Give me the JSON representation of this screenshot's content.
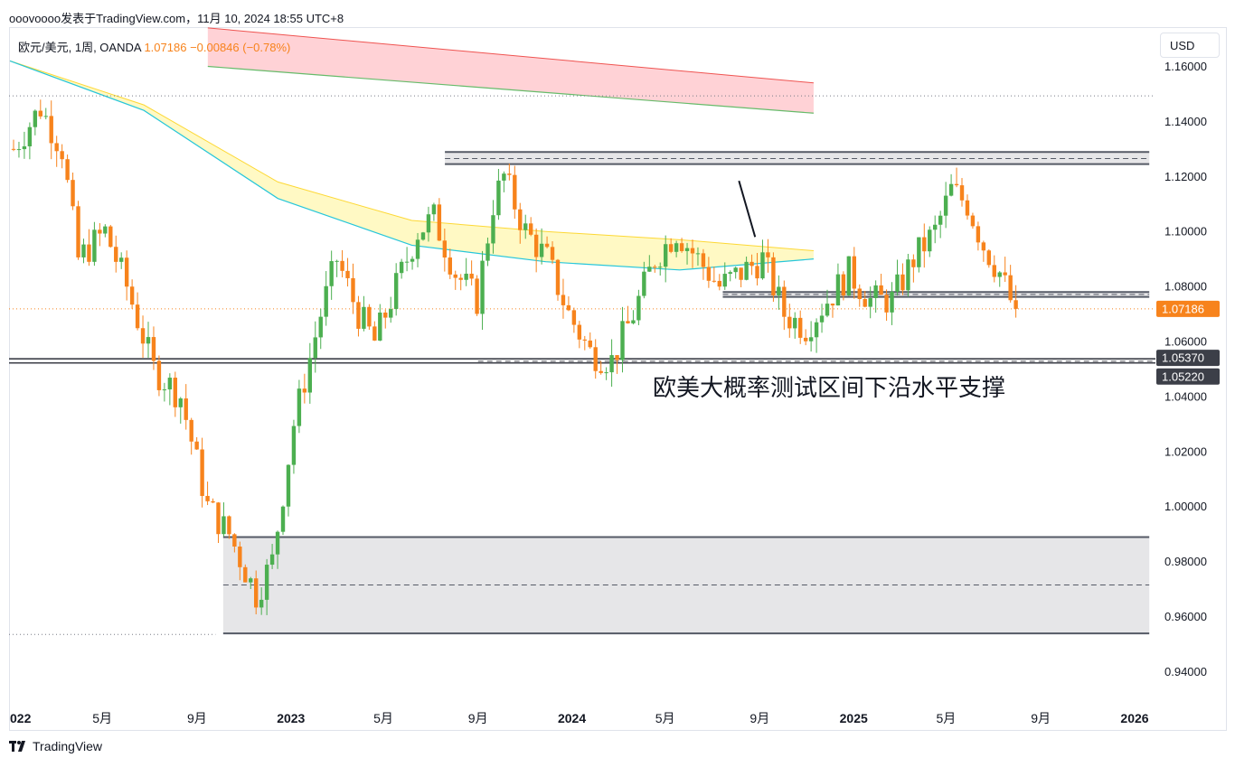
{
  "header": {
    "text": "ooovoooo发表于TradingView.com，11月 10, 2024 18:55 UTC+8"
  },
  "legend": {
    "symbol": "欧元/美元, 1周, OANDA",
    "price": "1.07186",
    "change": "−0.00846 (−0.78%)"
  },
  "currency_button": "USD",
  "footer": {
    "brand": "TradingView"
  },
  "annotation": "欧美大概率测试区间下沿水平支撑",
  "colors": {
    "up": "#4caf50",
    "down": "#f7831c",
    "band_red": "#ffcdd2",
    "band_yellow": "#fff59d",
    "ema_teal": "#26c6da",
    "ema_green": "#66bb6a",
    "zone_fill": "#e6e6e8",
    "zone_line": "#555a66",
    "price_tag": "#f7831c",
    "level_tag": "#3c3f48"
  },
  "chart_data": {
    "type": "candlestick",
    "title": "欧元/美元, 1周, OANDA",
    "ylim": [
      0.93,
      1.17
    ],
    "y_ticks": [
      "0.94000",
      "0.96000",
      "0.98000",
      "1.00000",
      "1.02000",
      "1.04000",
      "1.06000",
      "1.08000",
      "1.10000",
      "1.12000",
      "1.14000",
      "1.16000"
    ],
    "x_ticks": [
      {
        "label": "022",
        "date": "2022-01-01",
        "bold": true
      },
      {
        "label": "5月",
        "date": "2022-05-01",
        "bold": false
      },
      {
        "label": "9月",
        "date": "2022-09-01",
        "bold": false
      },
      {
        "label": "2023",
        "date": "2023-01-01",
        "bold": true
      },
      {
        "label": "5月",
        "date": "2023-05-01",
        "bold": false
      },
      {
        "label": "9月",
        "date": "2023-09-01",
        "bold": false
      },
      {
        "label": "2024",
        "date": "2024-01-01",
        "bold": true
      },
      {
        "label": "5月",
        "date": "2024-05-01",
        "bold": false
      },
      {
        "label": "9月",
        "date": "2024-09-01",
        "bold": false
      },
      {
        "label": "2025",
        "date": "2025-01-01",
        "bold": true
      },
      {
        "label": "5月",
        "date": "2025-05-01",
        "bold": false
      },
      {
        "label": "9月",
        "date": "2025-09-01",
        "bold": false
      },
      {
        "label": "2026",
        "date": "2026-01-01",
        "bold": true
      }
    ],
    "first_candle_date": "2022-01-01",
    "last_price": 1.07186,
    "price_labels": [
      {
        "value": 1.07186,
        "label": "1.07186",
        "kind": "last"
      },
      {
        "value": 1.0537,
        "label": "1.05370",
        "kind": "level"
      },
      {
        "value": 1.0522,
        "label": "1.05220",
        "kind": "level"
      }
    ],
    "dotted_levels": [
      1.1493,
      0.9535
    ],
    "anchors": [
      [
        0,
        1.13
      ],
      [
        5,
        1.145
      ],
      [
        9,
        1.13
      ],
      [
        12,
        1.09
      ],
      [
        17,
        1.1
      ],
      [
        21,
        1.08
      ],
      [
        26,
        1.05
      ],
      [
        31,
        1.04
      ],
      [
        36,
        1.0
      ],
      [
        40,
        0.99
      ],
      [
        45,
        0.968
      ],
      [
        48,
        0.98
      ],
      [
        52,
        1.03
      ],
      [
        57,
        1.07
      ],
      [
        60,
        1.09
      ],
      [
        64,
        1.07
      ],
      [
        67,
        1.06
      ],
      [
        71,
        1.08
      ],
      [
        75,
        1.1
      ],
      [
        78,
        1.105
      ],
      [
        82,
        1.085
      ],
      [
        86,
        1.075
      ],
      [
        89,
        1.11
      ],
      [
        91,
        1.12
      ],
      [
        95,
        1.1
      ],
      [
        99,
        1.09
      ],
      [
        103,
        1.07
      ],
      [
        107,
        1.056
      ],
      [
        111,
        1.053
      ],
      [
        115,
        1.07
      ],
      [
        119,
        1.09
      ],
      [
        123,
        1.1
      ],
      [
        127,
        1.09
      ],
      [
        131,
        1.08
      ],
      [
        135,
        1.085
      ],
      [
        139,
        1.09
      ],
      [
        143,
        1.07
      ],
      [
        147,
        1.065
      ],
      [
        151,
        1.075
      ],
      [
        155,
        1.085
      ],
      [
        159,
        1.075
      ],
      [
        163,
        1.075
      ],
      [
        167,
        1.09
      ],
      [
        171,
        1.1
      ],
      [
        174,
        1.115
      ],
      [
        177,
        1.11
      ],
      [
        180,
        1.095
      ],
      [
        183,
        1.085
      ],
      [
        185,
        1.075
      ],
      [
        186,
        1.0719
      ]
    ],
    "bands": [
      {
        "name": "red",
        "start_date": "2022-09-15",
        "end_date": "2024-11-10",
        "upper": [
          1.174,
          1.154
        ],
        "lower": [
          1.16,
          1.143
        ]
      },
      {
        "name": "yellow",
        "start_date": "2022-01-01",
        "end_date": "2024-11-10",
        "upper": [
          1.162,
          1.146,
          1.118,
          1.104,
          1.1,
          1.097,
          1.093
        ],
        "lower": [
          1.162,
          1.144,
          1.112,
          1.095,
          1.089,
          1.086,
          1.09
        ]
      }
    ],
    "zones": [
      {
        "name": "upper-resistance",
        "start_date": "2023-07-20",
        "end_date": "2026-01-20",
        "top": 1.1289,
        "bottom": 1.1245,
        "mid": 1.1265,
        "fill": "#e6e6e8"
      },
      {
        "name": "mid-support",
        "start_date": "2024-07-15",
        "end_date": "2026-01-20",
        "top": 1.078,
        "bottom": 1.0762,
        "mid": 1.0771,
        "fill": "#e6e6e8"
      },
      {
        "name": "low-box",
        "start_date": "2022-10-05",
        "end_date": "2026-01-20",
        "top": 0.9889,
        "bottom": 0.9539,
        "mid": 0.9715,
        "fill": "#e6e6e8"
      }
    ],
    "support_lines": [
      1.0537,
      1.0522
    ],
    "support_dashed": 1.0528,
    "grid": false,
    "legend_position": "top-left"
  }
}
